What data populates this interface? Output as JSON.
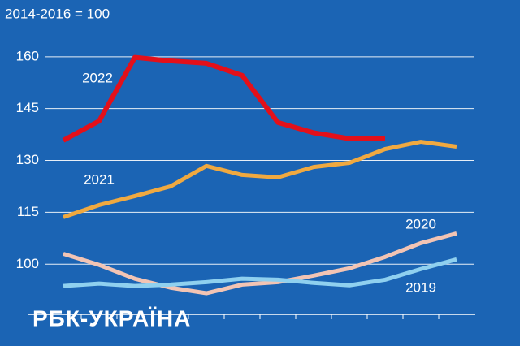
{
  "chart_data": {
    "type": "line",
    "subtitle": "2014-2016 = 100",
    "watermark": "РБК-УКРАЇНА",
    "categories": [
      null,
      null,
      null,
      null,
      null,
      null,
      null,
      null,
      null,
      null,
      null,
      null
    ],
    "series": [
      {
        "name": "2022",
        "color": "#e3101a",
        "values": [
          135.8,
          141.4,
          159.8,
          158.8,
          158.1,
          154.6,
          141.0,
          138.0,
          136.3,
          136.3,
          null,
          null
        ]
      },
      {
        "name": "2021",
        "color": "#f0a940",
        "values": [
          113.6,
          117.1,
          119.7,
          122.5,
          128.4,
          125.8,
          125.1,
          128.1,
          129.3,
          133.3,
          135.4,
          134.0
        ]
      },
      {
        "name": "2020",
        "color": "#f2c4b4",
        "values": [
          103.0,
          99.8,
          95.8,
          93.2,
          91.6,
          94.1,
          94.8,
          96.7,
          98.8,
          102.1,
          106.1,
          108.9
        ]
      },
      {
        "name": "2019",
        "color": "#8fd0ef",
        "values": [
          93.7,
          94.4,
          93.7,
          94.1,
          94.8,
          95.8,
          95.5,
          94.6,
          93.9,
          95.5,
          98.6,
          101.4
        ]
      }
    ],
    "ylim": [
      85.5,
      176.4
    ],
    "yticks": [
      100,
      115,
      130,
      145,
      160
    ],
    "grid": true
  }
}
